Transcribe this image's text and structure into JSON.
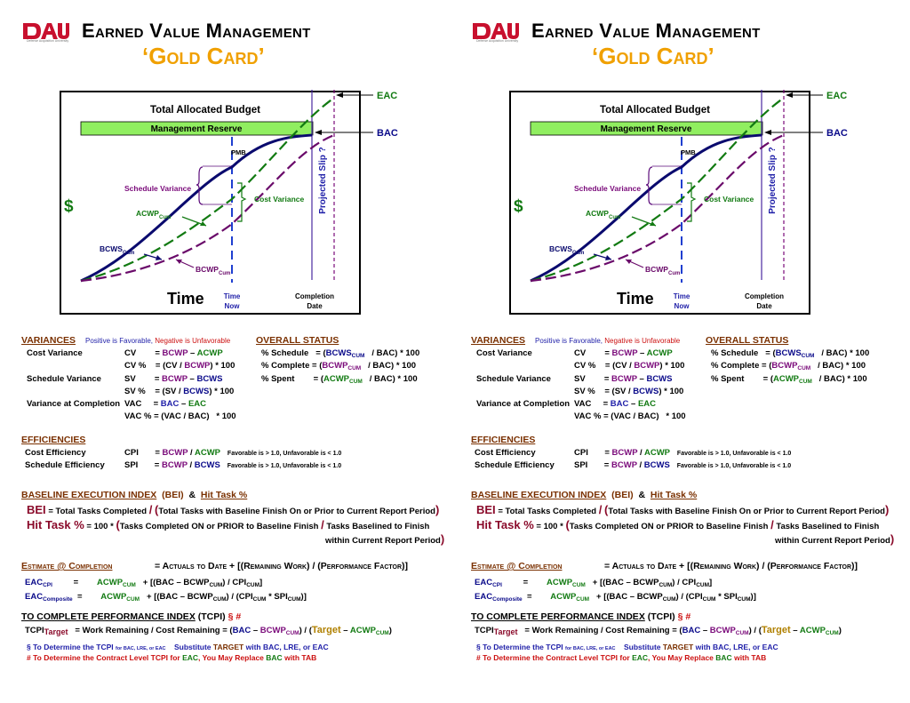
{
  "header": {
    "logo_text": "Defense Acquisition University",
    "title_line1": "Earned Value Management",
    "title_line2": "‘Gold Card’"
  },
  "chart": {
    "eac_label": "EAC",
    "bac_label": "BAC",
    "tab_label": "Total Allocated Budget",
    "mr_label": "Management Reserve",
    "pmb_label": "PMB",
    "sv_label": "Schedule Variance",
    "cv_label": "Cost Variance",
    "acwp_label": "ACWP",
    "acwp_sub": "Cum",
    "bcws_label": "BCWS",
    "bcws_sub": "Cum",
    "bcwp_label": "BCWP",
    "bcwp_sub": "Cum",
    "slip_label": "Projected Slip ?",
    "dollar_label": "$",
    "time_label": "Time",
    "time_now_1": "Time",
    "time_now_2": "Now",
    "completion_1": "Completion",
    "completion_2": "Date",
    "colors": {
      "bcws": "#0a0a6e",
      "acwp": "#127a12",
      "bcwp": "#6a0a6a",
      "mr": "#90ee60",
      "slip": "#4a2aa0",
      "now": "#1f3fd0"
    }
  },
  "variances": {
    "header": "VARIANCES",
    "favorable": "Positive is Favorable,",
    "unfavorable": "Negative is Unfavorable",
    "cost_variance": "Cost Variance",
    "schedule_variance": "Schedule Variance",
    "vac": "Variance at Completion",
    "cv": "CV",
    "cv_pct": "CV %",
    "sv": "SV",
    "sv_pct": "SV %",
    "vac_abbr": "VAC",
    "vac_pct": "VAC %",
    "eq": "=",
    "bcwp": "BCWP",
    "acwp": "ACWP",
    "bcws": "BCWS",
    "bac": "BAC",
    "eac": "EAC",
    "minus": "–",
    "open": "(CV /",
    "open_sv": "(SV /",
    "open_vac": "(VAC / BAC)",
    "close": ")",
    "times100": "* 100"
  },
  "overall_status": {
    "header": "OVERALL STATUS",
    "pct_schedule": "% Schedule",
    "pct_complete": "% Complete",
    "pct_spent": "% Spent",
    "eq": "=",
    "bcws": "BCWS",
    "bcwp": "BCWP",
    "acwp": "ACWP",
    "cum": "CUM",
    "div_bac": "/ BAC)",
    "times100": "* 100",
    "open": "("
  },
  "efficiencies": {
    "header": "EFFICIENCIES",
    "cost_eff": "Cost Efficiency",
    "sched_eff": "Schedule Efficiency",
    "cpi": "CPI",
    "spi": "SPI",
    "eq": "=",
    "bcwp": "BCWP",
    "acwp": "ACWP",
    "bcws": "BCWS",
    "slash": "/",
    "note": "Favorable is > 1.0, Unfavorable is < 1.0"
  },
  "bei": {
    "header": "BASELINE EXECUTION INDEX",
    "bei_paren": "(BEI)",
    "amp": "&",
    "hit_task": "Hit Task %",
    "bei_label": "BEI",
    "bei_formula_a": "= Total Tasks Completed",
    "bei_formula_b": "Total Tasks with Baseline Finish On or Prior to Current Report Period",
    "hit_label": "Hit  Task %",
    "hit_formula_a": "=  100 *",
    "hit_formula_b": "Tasks Completed ON or PRIOR to Baseline Finish",
    "hit_formula_c": "Tasks Baselined to Finish",
    "hit_formula_d": "within Current Report Period",
    "slash": "/",
    "lparen": "(",
    "rparen": ")"
  },
  "eac": {
    "header": "Estimate @ Completion",
    "formula": "= Actuals to Date + [(Remaining Work) / (Performance Factor)]",
    "eac_cpi": "EAC",
    "eac_cpi_sub": "CPI",
    "eac_comp": "EAC",
    "eac_comp_sub": "Composite",
    "eq": "=",
    "acwp": "ACWP",
    "cum": "CUM",
    "cpi_tail": "+ [(BAC – BCWP",
    "cpi_end": ") / CPI",
    "comp_end": ") / (CPI",
    "spi": "SPI",
    "close1": "]",
    "close2": ")]",
    "star": "*"
  },
  "tcpi": {
    "header": "TO COMPLETE PERFORMANCE INDEX",
    "paren": "(TCPI)",
    "symbols": "§  #",
    "label": "TCPI",
    "label_sub": "Target",
    "formula_a": "=  Work Remaining / Cost Remaining = (",
    "bac": "BAC",
    "bcwp": "BCWP",
    "cum": "CUM",
    "target": "Target",
    "acwp": "ACWP",
    "note1_a": "§  To Determine the TCPI",
    "note1_b": "for BAC, LRE, or EAC",
    "note1_c": "Substitute",
    "note1_d": "TARGET",
    "note1_e": "with BAC, LRE, or EAC",
    "note2_a": "#  To Determine the Contract Level TCPI for",
    "note2_b": "EAC",
    "note2_c": ", You May Replace",
    "note2_d": "BAC",
    "note2_e": "with TAB"
  }
}
